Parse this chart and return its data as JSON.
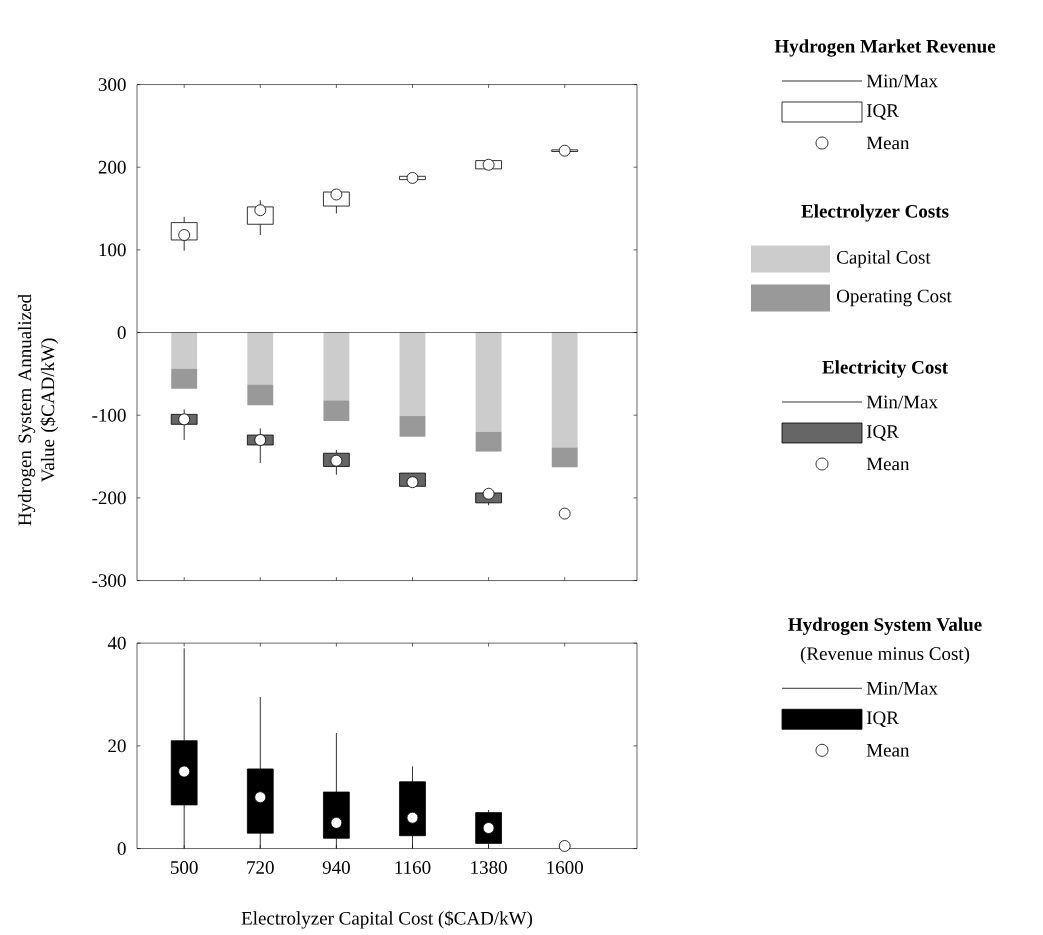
{
  "chart_data": [
    {
      "type": "box",
      "ylabel": "Hydrogen System Annualized Value ($CAD/kW)",
      "categories": [
        "500",
        "720",
        "940",
        "1160",
        "1380",
        "1600"
      ],
      "ylim": [
        -300,
        300
      ],
      "yticks": [
        -300,
        -200,
        -100,
        0,
        100,
        200,
        300
      ],
      "tick_labels": "y",
      "stacked": true,
      "legend": "right",
      "legend_title": "Electrolyzer Costs",
      "annotations": [
        "Min/Max",
        "IQR",
        "Mean",
        "Min/Max",
        "IQR",
        "Mean"
      ],
      "ref_lines": [
        {
          "axis": "y",
          "value": 0
        }
      ],
      "series": [
        {
          "type": "box",
          "name": "Hydrogen Market Revenue",
          "color": "#ffffff",
          "marker": "circle",
          "boxes": [
            {
              "low": 99,
              "q1": 112,
              "q3": 133,
              "high": 140,
              "mean": 118
            },
            {
              "low": 118,
              "q1": 131,
              "q3": 152,
              "high": 160,
              "mean": 148
            },
            {
              "low": 144,
              "q1": 153,
              "q3": 170,
              "high": 170,
              "mean": 167
            },
            {
              "low": 185,
              "q1": 185,
              "q3": 189,
              "high": 189,
              "mean": 187
            },
            {
              "low": 198,
              "q1": 198,
              "q3": 208,
              "high": 208,
              "mean": 203
            },
            {
              "low": 219,
              "q1": 219,
              "q3": 221,
              "high": 221,
              "mean": 220
            }
          ]
        },
        {
          "type": "bar",
          "name": "Capital Cost",
          "color": "#cccccc",
          "values": [
            -44,
            -63,
            -82,
            -101,
            -120,
            -139
          ]
        },
        {
          "type": "bar",
          "name": "Operating Cost",
          "color": "#999999",
          "values": [
            -24,
            -25,
            -25,
            -25,
            -24,
            -24
          ]
        },
        {
          "type": "box",
          "name": "Electricity Cost",
          "color": "#666666",
          "marker": "circle",
          "boxes": [
            {
              "low": -130,
              "q1": -111,
              "q3": -99,
              "high": -93,
              "mean": -105
            },
            {
              "low": -158,
              "q1": -136,
              "q3": -124,
              "high": -116,
              "mean": -130
            },
            {
              "low": -172,
              "q1": -162,
              "q3": -146,
              "high": -142,
              "mean": -155
            },
            {
              "low": -186,
              "q1": -186,
              "q3": -170,
              "high": -170,
              "mean": -181
            },
            {
              "low": -209,
              "q1": -206,
              "q3": -194,
              "high": -194,
              "mean": -195
            },
            null
          ]
        },
        {
          "type": "scatter",
          "color": "#ffffff",
          "marker": "circle",
          "values": [
            null,
            null,
            null,
            null,
            null,
            -219
          ]
        }
      ]
    },
    {
      "type": "box",
      "xlabel": "Electrolyzer Capital Cost ($CAD/kW)",
      "categories": [
        "500",
        "720",
        "940",
        "1160",
        "1380",
        "1600"
      ],
      "ylim": [
        0,
        40
      ],
      "yticks": [
        0,
        20,
        40
      ],
      "legend": "right",
      "annotations": [
        "(Revenue minus Cost)",
        "Min/Max",
        "IQR",
        "Mean"
      ],
      "series": [
        {
          "type": "box",
          "name": "Hydrogen System Value",
          "color": "#000000",
          "marker": "circle",
          "boxes": [
            {
              "low": 0,
              "q1": 8.5,
              "q3": 21,
              "high": 39,
              "mean": 15
            },
            {
              "low": 0,
              "q1": 3,
              "q3": 15.5,
              "high": 29.5,
              "mean": 10
            },
            {
              "low": 0,
              "q1": 2,
              "q3": 11,
              "high": 22.5,
              "mean": 5
            },
            {
              "low": 0,
              "q1": 2.5,
              "q3": 13,
              "high": 16,
              "mean": 6
            },
            {
              "low": 0,
              "q1": 1,
              "q3": 7,
              "high": 7.5,
              "mean": 4
            },
            null
          ]
        },
        {
          "type": "scatter",
          "color": "#ffffff",
          "marker": "circle",
          "values": [
            null,
            null,
            null,
            null,
            null,
            0.5
          ]
        }
      ]
    }
  ]
}
